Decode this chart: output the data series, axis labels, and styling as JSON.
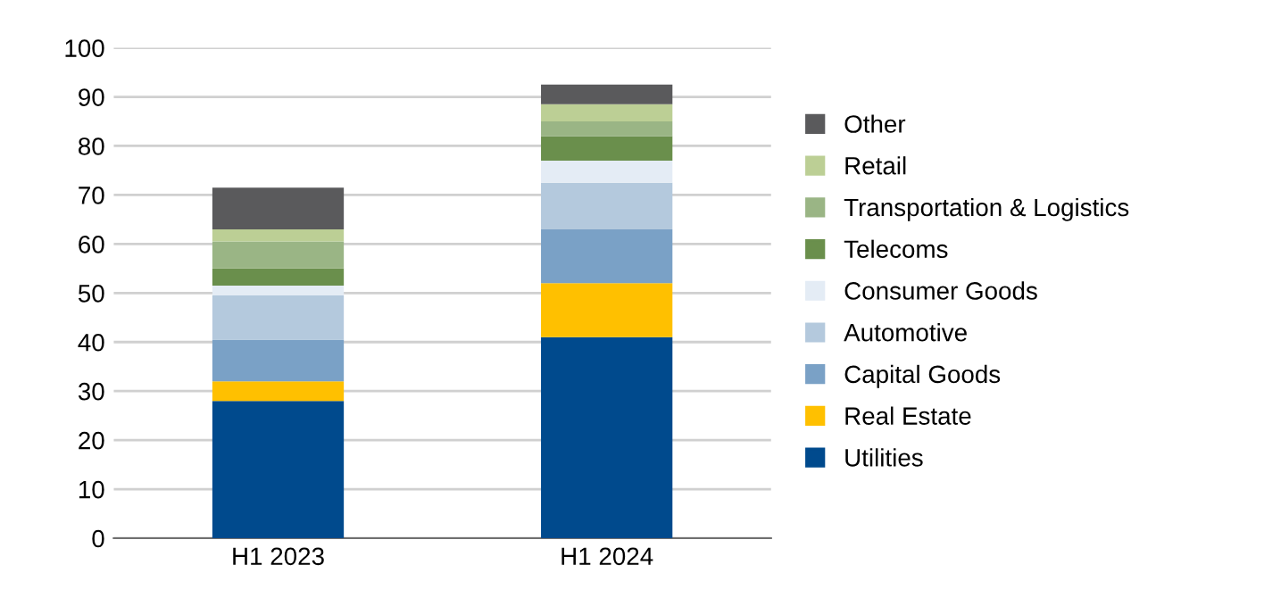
{
  "chart_data": {
    "type": "bar",
    "stacked": true,
    "categories": [
      "H1 2023",
      "H1 2024"
    ],
    "series": [
      {
        "name": "Utilities",
        "color": "#004a8d",
        "values": [
          28,
          41
        ]
      },
      {
        "name": "Real Estate",
        "color": "#ffc000",
        "values": [
          4,
          11
        ]
      },
      {
        "name": "Capital Goods",
        "color": "#7aa1c6",
        "values": [
          8.5,
          11
        ]
      },
      {
        "name": "Automotive",
        "color": "#b4c9dd",
        "values": [
          9,
          9.5
        ]
      },
      {
        "name": "Consumer Goods",
        "color": "#e4ecf5",
        "values": [
          2,
          4.5
        ]
      },
      {
        "name": "Telecoms",
        "color": "#6a8f4c",
        "values": [
          3.5,
          5
        ]
      },
      {
        "name": "Transportation & Logistics",
        "color": "#9ab585",
        "values": [
          5.5,
          3
        ]
      },
      {
        "name": "Retail",
        "color": "#bccf95",
        "values": [
          2.5,
          3.5
        ]
      },
      {
        "name": "Other",
        "color": "#5a5a5c",
        "values": [
          8.5,
          4
        ]
      }
    ],
    "ylim": [
      0,
      100
    ],
    "yticks": [
      0,
      10,
      20,
      30,
      40,
      50,
      60,
      70,
      80,
      90,
      100
    ],
    "grid": "y",
    "legend": "right"
  }
}
